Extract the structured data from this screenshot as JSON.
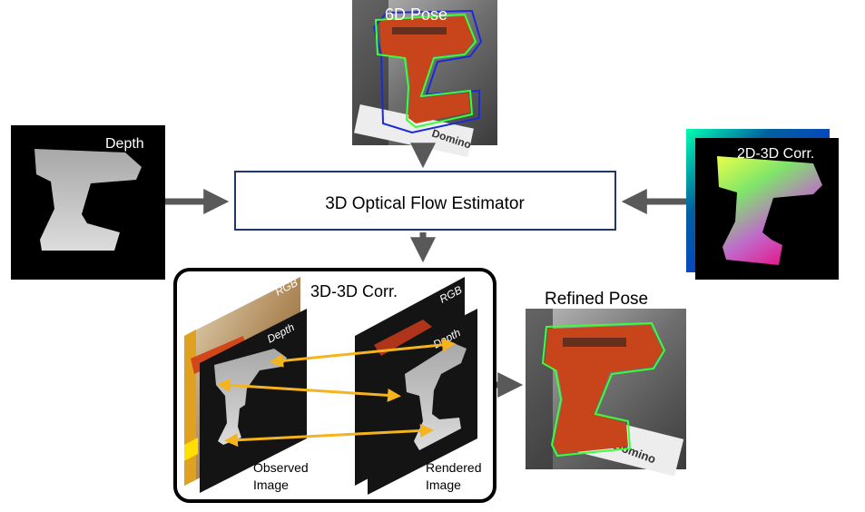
{
  "nodes": {
    "pose_6d": {
      "label": "6D Pose"
    },
    "depth": {
      "label": "Depth"
    },
    "corr_2d3d": {
      "label": "2D-3D Corr."
    },
    "estimator": {
      "label": "3D Optical Flow Estimator"
    },
    "corr_3d3d": {
      "label": "3D-3D Corr.",
      "observed": {
        "rgb_label": "RGB",
        "depth_label": "Depth",
        "caption_line1": "Observed",
        "caption_line2": "Image"
      },
      "rendered": {
        "rgb_label": "RGB",
        "depth_label": "Depth",
        "caption_line1": "Rendered",
        "caption_line2": "Image"
      }
    },
    "refined_pose": {
      "label": "Refined Pose"
    }
  },
  "box_text": "Domino",
  "colors": {
    "arrow": "#595959",
    "correspondence": "#f5b31c",
    "box_border": "#1f3864",
    "pose_contour_estimated": "#3aff3a",
    "pose_contour_initial": "#1a2bd6",
    "drill": "#c8441a"
  }
}
